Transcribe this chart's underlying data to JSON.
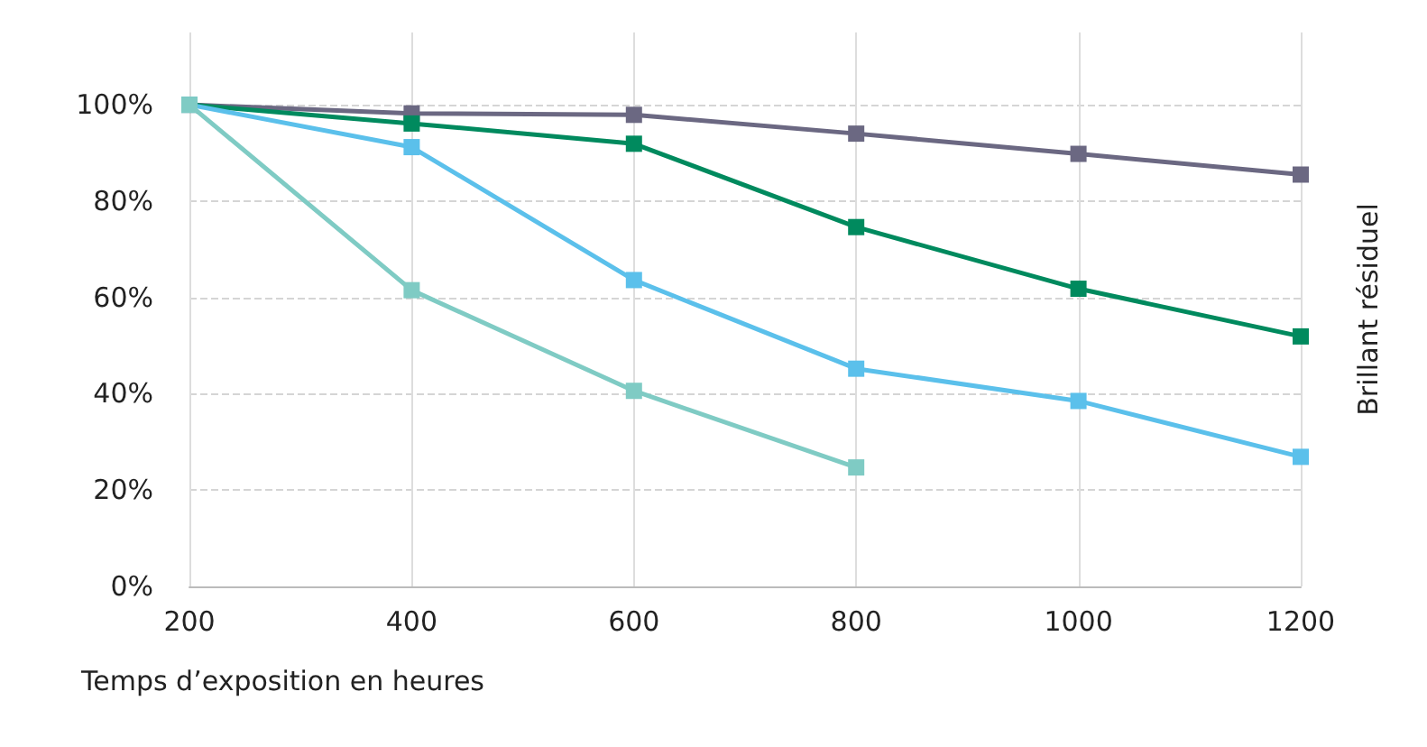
{
  "chart_data": {
    "type": "line",
    "xlabel": "Temps d’exposition en heures",
    "ylabel": "Brillant résiduel",
    "x": [
      200,
      400,
      600,
      800,
      1000,
      1200
    ],
    "series": [
      {
        "color": "#6b6882",
        "values": [
          100,
          98.2,
          97.9,
          94,
          89.8,
          85.5
        ]
      },
      {
        "color": "#008a5e",
        "values": [
          100,
          96.1,
          91.9,
          74.6,
          61.8,
          51.9
        ]
      },
      {
        "color": "#5bc0eb",
        "values": [
          100,
          91.2,
          63.6,
          45.2,
          38.5,
          26.9
        ]
      },
      {
        "color": "#7fcbc4",
        "values": [
          100,
          61.5,
          40.6,
          24.7,
          null,
          null
        ]
      }
    ],
    "xlim": [
      200,
      1200
    ],
    "xticks": [
      200,
      400,
      600,
      800,
      1000,
      1200
    ],
    "ylim": [
      0,
      115
    ],
    "yticks": [
      {
        "value": 0,
        "label": "0%"
      },
      {
        "value": 20,
        "label": "20%"
      },
      {
        "value": 40,
        "label": "40%"
      },
      {
        "value": 60,
        "label": "60%"
      },
      {
        "value": 80,
        "label": "80%"
      },
      {
        "value": 100,
        "label": "100%"
      }
    ],
    "grid": true,
    "marker": "square",
    "line_style": "solid"
  }
}
